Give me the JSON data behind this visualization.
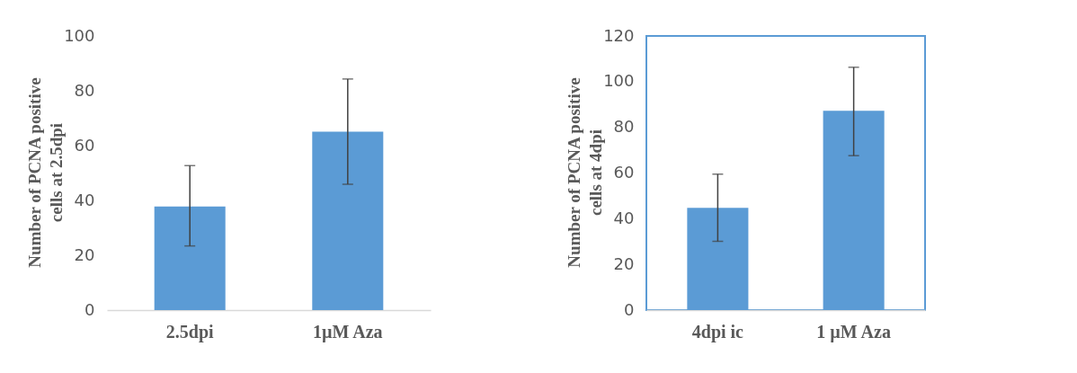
{
  "chart_data": [
    {
      "type": "bar",
      "ylabel": "Number of PCNA positive\ncells at 2.5dpi",
      "categories": [
        "2.5dpi",
        "1µM Aza"
      ],
      "values": [
        37.8,
        65.1
      ],
      "color": "#5b9bd5",
      "errors": [
        [
          23.4,
          52.7
        ],
        [
          45.9,
          84.3
        ]
      ],
      "ylim": [
        0,
        100
      ],
      "yticks": [
        0,
        20,
        40,
        60,
        80,
        100
      ],
      "grid": false
    },
    {
      "type": "bar",
      "ylabel": "Number of PCNA positive\ncells at 4dpi",
      "categories": [
        "4dpi ic",
        "1 µM Aza"
      ],
      "values": [
        44.8,
        87.2
      ],
      "color": "#5b9bd5",
      "errors": [
        [
          30.1,
          59.5
        ],
        [
          67.6,
          106.3
        ]
      ],
      "ylim": [
        0,
        120
      ],
      "yticks": [
        0,
        20,
        40,
        60,
        80,
        100,
        120
      ],
      "grid": false
    }
  ]
}
